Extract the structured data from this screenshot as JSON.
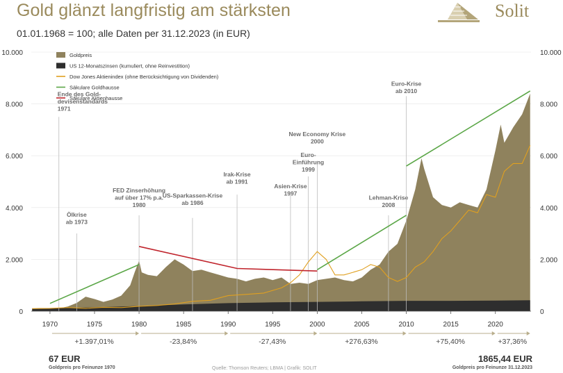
{
  "header": {
    "title": "Gold glänzt langfristig am stärksten",
    "subtitle": "01.01.1968 = 100; alle Daten per 31.12.2023 (in EUR)",
    "brand": "Solit"
  },
  "colors": {
    "gold": "#8f825d",
    "interest": "#2e2e2e",
    "dow": "#e0a020",
    "gold_bull": "#5aa646",
    "stock_bull": "#c0242c",
    "axis_text": "#333333",
    "accent": "#9a8a5c",
    "annotation_line": "#bcbcbc"
  },
  "footer": {
    "left_value": "67 EUR",
    "left_label": "Goldpreis pro Feinunze 1970",
    "right_value": "1865,44 EUR",
    "right_label": "Goldpreis pro Feinunze 31.12.2023",
    "source": "Quelle: Thomson Reuters; LBMA  |  Grafik: SOLIT"
  },
  "chart_data": {
    "type": "area",
    "xlim": [
      1967.9,
      2024.0
    ],
    "ylim": [
      0,
      10000
    ],
    "y_ticks": [
      "0",
      "2.000",
      "4.000",
      "6.000",
      "8.000",
      "10.000"
    ],
    "y_tick_values": [
      0,
      2000,
      4000,
      6000,
      8000,
      10000
    ],
    "x_ticks": [
      "1970",
      "1975",
      "1980",
      "1985",
      "1990",
      "1995",
      "2000",
      "2005",
      "2010",
      "2015",
      "2020"
    ],
    "x_tick_values": [
      1970,
      1975,
      1980,
      1985,
      1990,
      1995,
      2000,
      2005,
      2010,
      2015,
      2020
    ],
    "legend": [
      {
        "label": "Goldpreis",
        "kind": "area",
        "color": "#8f825d"
      },
      {
        "label": "US 12-Monatszinsen (kumuliert, ohne Reinvestition)",
        "kind": "area",
        "color": "#2e2e2e"
      },
      {
        "label": "Dow Jones Aktienindex (ohne Berücksichtigung von Dividenden)",
        "kind": "line",
        "color": "#e0a020"
      },
      {
        "label": "Säkulare Goldhausse",
        "kind": "line",
        "color": "#5aa646"
      },
      {
        "label": "Säkulare Aktienhausse",
        "kind": "line",
        "color": "#c0242c"
      }
    ],
    "series": [
      {
        "name": "Goldpreis",
        "x": [
          1968,
          1969,
          1970,
          1971,
          1972,
          1973,
          1974,
          1975,
          1976,
          1977,
          1978,
          1979,
          1979.5,
          1980,
          1980.3,
          1981,
          1982,
          1983,
          1984,
          1985,
          1986,
          1987,
          1988,
          1989,
          1990,
          1991,
          1992,
          1993,
          1994,
          1995,
          1996,
          1997,
          1998,
          1999,
          2000,
          2001,
          2002,
          2003,
          2004,
          2005,
          2006,
          2007,
          2008,
          2009,
          2010,
          2011,
          2011.7,
          2012,
          2013,
          2014,
          2015,
          2016,
          2017,
          2018,
          2019,
          2020,
          2020.6,
          2021,
          2022,
          2023,
          2023.9
        ],
        "values": [
          100,
          120,
          80,
          110,
          180,
          320,
          560,
          470,
          360,
          450,
          600,
          1000,
          1500,
          1950,
          1500,
          1400,
          1350,
          1700,
          2000,
          1800,
          1550,
          1600,
          1500,
          1400,
          1300,
          1250,
          1150,
          1250,
          1300,
          1200,
          1300,
          1050,
          1100,
          1050,
          1200,
          1250,
          1300,
          1200,
          1150,
          1300,
          1600,
          1800,
          2300,
          2600,
          3500,
          4700,
          5900,
          5500,
          4400,
          4100,
          4000,
          4200,
          4100,
          4000,
          4700,
          6200,
          7200,
          6500,
          7100,
          7600,
          8400
        ]
      },
      {
        "name": "US 12-Monatszinsen (kumuliert, ohne Reinvestition)",
        "x": [
          1968,
          1975,
          1980,
          1985,
          1990,
          1995,
          2000,
          2005,
          2010,
          2015,
          2020,
          2023.9
        ],
        "values": [
          100,
          150,
          200,
          260,
          310,
          340,
          360,
          380,
          400,
          400,
          410,
          420
        ]
      },
      {
        "name": "Dow Jones Aktienindex (ohne Berücksichtigung von Dividenden)",
        "x": [
          1968,
          1970,
          1972,
          1974,
          1976,
          1978,
          1980,
          1982,
          1984,
          1986,
          1988,
          1990,
          1992,
          1994,
          1996,
          1997,
          1998,
          1999,
          2000,
          2001,
          2002,
          2003,
          2004,
          2005,
          2006,
          2007,
          2008,
          2009,
          2010,
          2011,
          2012,
          2013,
          2014,
          2015,
          2016,
          2017,
          2018,
          2019,
          2020,
          2021,
          2022,
          2023,
          2023.9
        ],
        "values": [
          100,
          110,
          140,
          110,
          150,
          140,
          190,
          220,
          280,
          380,
          420,
          600,
          650,
          700,
          900,
          1100,
          1400,
          1900,
          2300,
          2000,
          1400,
          1400,
          1500,
          1600,
          1800,
          1700,
          1300,
          1150,
          1300,
          1700,
          1900,
          2300,
          2800,
          3100,
          3500,
          3900,
          3800,
          4500,
          4400,
          5400,
          5700,
          5700,
          6400
        ]
      },
      {
        "name": "Säkulare Goldhausse",
        "segments": [
          {
            "x": [
              1970,
              1980
            ],
            "values": [
              300,
              1800
            ]
          },
          {
            "x": [
              2000,
              2010
            ],
            "values": [
              1600,
              3700
            ]
          },
          {
            "x": [
              2010,
              2023.9
            ],
            "values": [
              5600,
              8500
            ]
          }
        ]
      },
      {
        "name": "Säkulare Aktienhausse",
        "x": [
          1980,
          1991,
          2000
        ],
        "values": [
          2500,
          1650,
          1550
        ]
      }
    ],
    "annotations": [
      {
        "lines": [
          "Ende des Gold-",
          "devisenstandards",
          "1971"
        ],
        "x": 1971,
        "line_top": 7500,
        "label_y": 8300,
        "anchor": "start"
      },
      {
        "lines": [
          "Ölkrise",
          "ab 1973"
        ],
        "x": 1973,
        "line_top": 3000,
        "label_y": 3650,
        "anchor": "middle"
      },
      {
        "lines": [
          "FED Zinserhöhung",
          "auf über 17% p.a.",
          "1980"
        ],
        "x": 1980,
        "line_top": 3700,
        "label_y": 4580,
        "anchor": "middle"
      },
      {
        "lines": [
          "US-Sparkassen-Krise",
          "ab 1986"
        ],
        "x": 1986,
        "line_top": 3600,
        "label_y": 4380,
        "anchor": "middle"
      },
      {
        "lines": [
          "Irak-Krise",
          "ab 1991"
        ],
        "x": 1991,
        "line_top": 4500,
        "label_y": 5200,
        "anchor": "middle"
      },
      {
        "lines": [
          "Asien-Krise",
          "1997"
        ],
        "x": 1997,
        "line_top": 4500,
        "label_y": 4750,
        "anchor": "middle"
      },
      {
        "lines": [
          "Euro-",
          "Einführung",
          "1999"
        ],
        "x": 1999,
        "line_top": 5200,
        "label_y": 5950,
        "anchor": "middle"
      },
      {
        "lines": [
          "New Economy Krise",
          "2000"
        ],
        "x": 2000,
        "line_top": 5800,
        "label_y": 6750,
        "anchor": "middle"
      },
      {
        "lines": [
          "Lehman-Krise",
          "2008"
        ],
        "x": 2008,
        "line_top": 3700,
        "label_y": 4300,
        "anchor": "middle"
      },
      {
        "lines": [
          "Euro-Krise",
          "ab 2010"
        ],
        "x": 2010,
        "line_top": 8300,
        "label_y": 8700,
        "anchor": "middle"
      }
    ],
    "period_returns": [
      {
        "label": "+1.397,01%",
        "from": 1970,
        "to": 1980
      },
      {
        "label": "-23,84%",
        "from": 1980,
        "to": 1990
      },
      {
        "label": "-27,43%",
        "from": 1990,
        "to": 2000
      },
      {
        "label": "+276,63%",
        "from": 2000,
        "to": 2010
      },
      {
        "label": "+75,40%",
        "from": 2010,
        "to": 2020
      },
      {
        "label": "+37,36%",
        "from": 2020,
        "to": 2023.9
      }
    ]
  }
}
